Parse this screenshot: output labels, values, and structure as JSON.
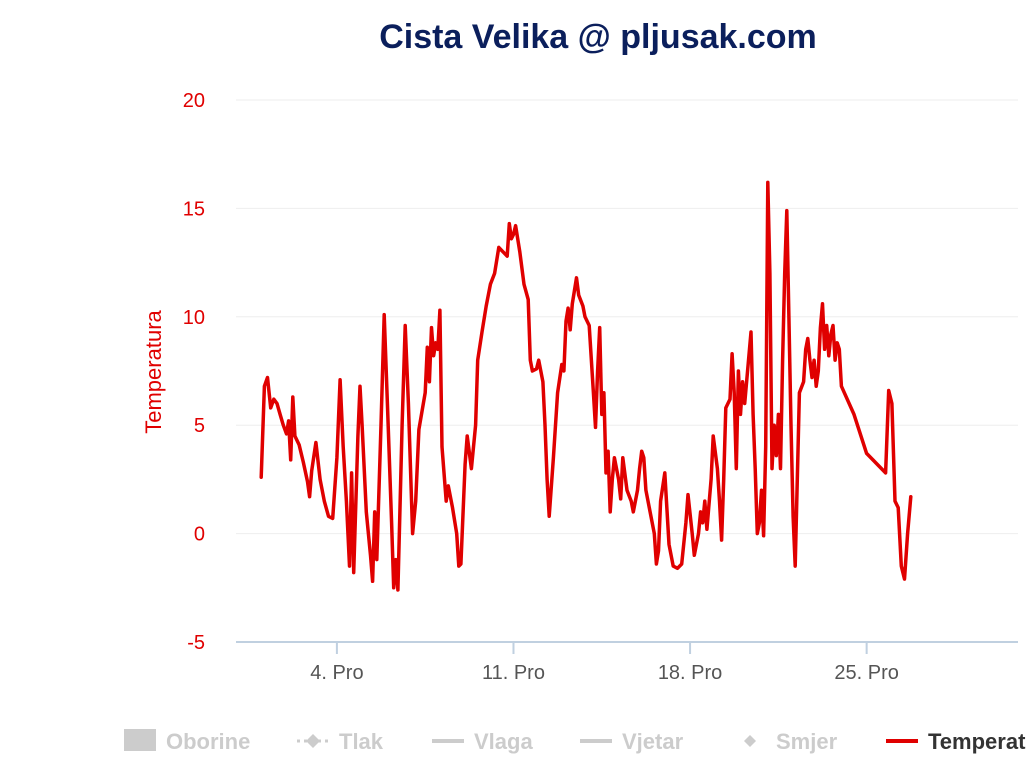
{
  "chart_data": {
    "type": "line",
    "title": "Cista Velika @ pljusak.com",
    "ylabel": "Temperatura",
    "ylim": [
      -5,
      20
    ],
    "yticks": [
      -5,
      0,
      5,
      10,
      15,
      20
    ],
    "xlim": [
      "2020-11-30",
      "2020-12-31"
    ],
    "xticks": [
      {
        "date": "2020-12-04",
        "label": "4. Pro"
      },
      {
        "date": "2020-12-11",
        "label": "11. Pro"
      },
      {
        "date": "2020-12-18",
        "label": "18. Pro"
      },
      {
        "date": "2020-12-25",
        "label": "25. Pro"
      }
    ],
    "grid": true,
    "legend_position": "bottom",
    "legend": [
      {
        "name": "Oborine",
        "symbol": "box",
        "active": false
      },
      {
        "name": "Tlak",
        "symbol": "dash-diamond",
        "active": false
      },
      {
        "name": "Vlaga",
        "symbol": "line",
        "active": false
      },
      {
        "name": "Vjetar",
        "symbol": "line",
        "active": false
      },
      {
        "name": "Smjer",
        "symbol": "diamond",
        "active": false
      },
      {
        "name": "Temperat",
        "symbol": "line",
        "active": true
      }
    ],
    "series": [
      {
        "name": "Temperat",
        "color": "#e00000",
        "points": [
          [
            "2020-12-01 00:00",
            2.6
          ],
          [
            "2020-12-01 03:00",
            6.8
          ],
          [
            "2020-12-01 06:00",
            7.2
          ],
          [
            "2020-12-01 09:00",
            5.8
          ],
          [
            "2020-12-01 12:00",
            6.2
          ],
          [
            "2020-12-01 15:00",
            6.0
          ],
          [
            "2020-12-01 18:00",
            5.5
          ],
          [
            "2020-12-01 21:00",
            5.0
          ],
          [
            "2020-12-02 00:00",
            4.6
          ],
          [
            "2020-12-02 02:00",
            5.2
          ],
          [
            "2020-12-02 04:00",
            3.4
          ],
          [
            "2020-12-02 06:00",
            6.3
          ],
          [
            "2020-12-02 08:00",
            4.5
          ],
          [
            "2020-12-02 12:00",
            4.1
          ],
          [
            "2020-12-02 16:00",
            3.3
          ],
          [
            "2020-12-02 20:00",
            2.4
          ],
          [
            "2020-12-02 22:00",
            1.7
          ],
          [
            "2020-12-03 00:00",
            2.9
          ],
          [
            "2020-12-03 04:00",
            4.2
          ],
          [
            "2020-12-03 08:00",
            2.5
          ],
          [
            "2020-12-03 12:00",
            1.5
          ],
          [
            "2020-12-03 16:00",
            0.8
          ],
          [
            "2020-12-03 20:00",
            0.7
          ],
          [
            "2020-12-04 00:00",
            3.5
          ],
          [
            "2020-12-04 03:00",
            7.1
          ],
          [
            "2020-12-04 06:00",
            4.0
          ],
          [
            "2020-12-04 09:00",
            1.5
          ],
          [
            "2020-12-04 12:00",
            -1.5
          ],
          [
            "2020-12-04 14:00",
            2.8
          ],
          [
            "2020-12-04 16:00",
            -1.8
          ],
          [
            "2020-12-04 20:00",
            4.5
          ],
          [
            "2020-12-04 22:00",
            6.8
          ],
          [
            "2020-12-05 00:00",
            5.0
          ],
          [
            "2020-12-05 04:00",
            1.0
          ],
          [
            "2020-12-05 08:00",
            -1.0
          ],
          [
            "2020-12-05 10:00",
            -2.2
          ],
          [
            "2020-12-05 12:00",
            1.0
          ],
          [
            "2020-12-05 14:00",
            -1.2
          ],
          [
            "2020-12-05 18:00",
            5.0
          ],
          [
            "2020-12-05 21:00",
            10.1
          ],
          [
            "2020-12-06 00:00",
            6.0
          ],
          [
            "2020-12-06 04:00",
            0.5
          ],
          [
            "2020-12-06 06:00",
            -2.5
          ],
          [
            "2020-12-06 08:00",
            -1.2
          ],
          [
            "2020-12-06 10:00",
            -2.6
          ],
          [
            "2020-12-06 14:00",
            5.0
          ],
          [
            "2020-12-06 17:00",
            9.6
          ],
          [
            "2020-12-06 20:00",
            6.0
          ],
          [
            "2020-12-07 00:00",
            0.0
          ],
          [
            "2020-12-07 03:00",
            1.5
          ],
          [
            "2020-12-07 06:00",
            4.8
          ],
          [
            "2020-12-07 12:00",
            6.5
          ],
          [
            "2020-12-07 14:00",
            8.6
          ],
          [
            "2020-12-07 16:00",
            7.0
          ],
          [
            "2020-12-07 18:00",
            9.5
          ],
          [
            "2020-12-07 20:00",
            8.2
          ],
          [
            "2020-12-07 22:00",
            8.8
          ],
          [
            "2020-12-08 00:00",
            8.5
          ],
          [
            "2020-12-08 02:00",
            10.3
          ],
          [
            "2020-12-08 04:00",
            4.0
          ],
          [
            "2020-12-08 08:00",
            1.5
          ],
          [
            "2020-12-08 10:00",
            2.2
          ],
          [
            "2020-12-08 14:00",
            1.2
          ],
          [
            "2020-12-08 18:00",
            0.0
          ],
          [
            "2020-12-08 20:00",
            -1.5
          ],
          [
            "2020-12-08 22:00",
            -1.4
          ],
          [
            "2020-12-09 02:00",
            3.2
          ],
          [
            "2020-12-09 04:00",
            4.5
          ],
          [
            "2020-12-09 08:00",
            3.0
          ],
          [
            "2020-12-09 12:00",
            5.0
          ],
          [
            "2020-12-09 14:00",
            8.0
          ],
          [
            "2020-12-09 18:00",
            9.3
          ],
          [
            "2020-12-09 22:00",
            10.5
          ],
          [
            "2020-12-10 02:00",
            11.5
          ],
          [
            "2020-12-10 06:00",
            12.0
          ],
          [
            "2020-12-10 10:00",
            13.2
          ],
          [
            "2020-12-10 14:00",
            13.0
          ],
          [
            "2020-12-10 18:00",
            12.8
          ],
          [
            "2020-12-10 20:00",
            14.3
          ],
          [
            "2020-12-10 22:00",
            13.6
          ],
          [
            "2020-12-11 00:00",
            13.8
          ],
          [
            "2020-12-11 02:00",
            14.2
          ],
          [
            "2020-12-11 06:00",
            13.0
          ],
          [
            "2020-12-11 10:00",
            11.5
          ],
          [
            "2020-12-11 14:00",
            10.8
          ],
          [
            "2020-12-11 16:00",
            8.0
          ],
          [
            "2020-12-11 18:00",
            7.5
          ],
          [
            "2020-12-11 22:00",
            7.6
          ],
          [
            "2020-12-12 00:00",
            8.0
          ],
          [
            "2020-12-12 04:00",
            7.0
          ],
          [
            "2020-12-12 06:00",
            5.0
          ],
          [
            "2020-12-12 08:00",
            2.5
          ],
          [
            "2020-12-12 10:00",
            0.8
          ],
          [
            "2020-12-12 14:00",
            3.5
          ],
          [
            "2020-12-12 18:00",
            6.5
          ],
          [
            "2020-12-12 22:00",
            7.8
          ],
          [
            "2020-12-13 00:00",
            7.5
          ],
          [
            "2020-12-13 02:00",
            9.8
          ],
          [
            "2020-12-13 04:00",
            10.4
          ],
          [
            "2020-12-13 06:00",
            9.4
          ],
          [
            "2020-12-13 08:00",
            10.6
          ],
          [
            "2020-12-13 10:00",
            11.2
          ],
          [
            "2020-12-13 12:00",
            11.8
          ],
          [
            "2020-12-13 14:00",
            11.0
          ],
          [
            "2020-12-13 18:00",
            10.5
          ],
          [
            "2020-12-13 20:00",
            10.0
          ],
          [
            "2020-12-14 00:00",
            9.6
          ],
          [
            "2020-12-14 04:00",
            6.5
          ],
          [
            "2020-12-14 06:00",
            4.9
          ],
          [
            "2020-12-14 08:00",
            7.5
          ],
          [
            "2020-12-14 10:00",
            9.5
          ],
          [
            "2020-12-14 12:00",
            5.5
          ],
          [
            "2020-12-14 14:00",
            6.5
          ],
          [
            "2020-12-14 16:00",
            2.8
          ],
          [
            "2020-12-14 18:00",
            3.8
          ],
          [
            "2020-12-14 20:00",
            1.0
          ],
          [
            "2020-12-14 22:00",
            2.5
          ],
          [
            "2020-12-15 00:00",
            3.5
          ],
          [
            "2020-12-15 04:00",
            2.5
          ],
          [
            "2020-12-15 06:00",
            1.6
          ],
          [
            "2020-12-15 08:00",
            3.5
          ],
          [
            "2020-12-15 12:00",
            2.0
          ],
          [
            "2020-12-15 16:00",
            1.5
          ],
          [
            "2020-12-15 18:00",
            1.0
          ],
          [
            "2020-12-15 22:00",
            2.0
          ],
          [
            "2020-12-16 00:00",
            3.0
          ],
          [
            "2020-12-16 02:00",
            3.8
          ],
          [
            "2020-12-16 04:00",
            3.5
          ],
          [
            "2020-12-16 06:00",
            2.0
          ],
          [
            "2020-12-16 10:00",
            1.0
          ],
          [
            "2020-12-16 14:00",
            0.0
          ],
          [
            "2020-12-16 16:00",
            -1.4
          ],
          [
            "2020-12-16 18:00",
            -0.8
          ],
          [
            "2020-12-16 20:00",
            1.5
          ],
          [
            "2020-12-17 00:00",
            2.8
          ],
          [
            "2020-12-17 04:00",
            -0.5
          ],
          [
            "2020-12-17 08:00",
            -1.5
          ],
          [
            "2020-12-17 12:00",
            -1.6
          ],
          [
            "2020-12-17 16:00",
            -1.4
          ],
          [
            "2020-12-17 20:00",
            0.5
          ],
          [
            "2020-12-17 22:00",
            1.8
          ],
          [
            "2020-12-18 02:00",
            0.0
          ],
          [
            "2020-12-18 04:00",
            -1.0
          ],
          [
            "2020-12-18 08:00",
            0.0
          ],
          [
            "2020-12-18 10:00",
            1.0
          ],
          [
            "2020-12-18 12:00",
            0.5
          ],
          [
            "2020-12-18 14:00",
            1.5
          ],
          [
            "2020-12-18 16:00",
            0.2
          ],
          [
            "2020-12-18 20:00",
            2.5
          ],
          [
            "2020-12-18 22:00",
            4.5
          ],
          [
            "2020-12-19 02:00",
            3.0
          ],
          [
            "2020-12-19 04:00",
            1.5
          ],
          [
            "2020-12-19 06:00",
            -0.3
          ],
          [
            "2020-12-19 08:00",
            2.5
          ],
          [
            "2020-12-19 10:00",
            5.8
          ],
          [
            "2020-12-19 14:00",
            6.2
          ],
          [
            "2020-12-19 16:00",
            8.3
          ],
          [
            "2020-12-19 18:00",
            6.5
          ],
          [
            "2020-12-19 20:00",
            3.0
          ],
          [
            "2020-12-19 22:00",
            7.5
          ],
          [
            "2020-12-20 00:00",
            5.5
          ],
          [
            "2020-12-20 02:00",
            7.0
          ],
          [
            "2020-12-20 04:00",
            6.0
          ],
          [
            "2020-12-20 08:00",
            8.2
          ],
          [
            "2020-12-20 10:00",
            9.3
          ],
          [
            "2020-12-20 12:00",
            5.5
          ],
          [
            "2020-12-20 14:00",
            3.0
          ],
          [
            "2020-12-20 16:00",
            0.0
          ],
          [
            "2020-12-20 18:00",
            0.5
          ],
          [
            "2020-12-20 20:00",
            2.0
          ],
          [
            "2020-12-20 22:00",
            -0.1
          ],
          [
            "2020-12-21 00:00",
            4.0
          ],
          [
            "2020-12-21 02:00",
            16.2
          ],
          [
            "2020-12-21 04:00",
            12.0
          ],
          [
            "2020-12-21 06:00",
            3.0
          ],
          [
            "2020-12-21 08:00",
            5.0
          ],
          [
            "2020-12-21 10:00",
            3.6
          ],
          [
            "2020-12-21 12:00",
            5.5
          ],
          [
            "2020-12-21 14:00",
            3.0
          ],
          [
            "2020-12-21 16:00",
            8.0
          ],
          [
            "2020-12-21 18:00",
            12.0
          ],
          [
            "2020-12-21 20:00",
            14.9
          ],
          [
            "2020-12-21 22:00",
            10.0
          ],
          [
            "2020-12-22 00:00",
            5.0
          ],
          [
            "2020-12-22 02:00",
            0.8
          ],
          [
            "2020-12-22 04:00",
            -1.5
          ],
          [
            "2020-12-22 06:00",
            2.5
          ],
          [
            "2020-12-22 08:00",
            6.5
          ],
          [
            "2020-12-22 12:00",
            7.0
          ],
          [
            "2020-12-22 14:00",
            8.5
          ],
          [
            "2020-12-22 16:00",
            9.0
          ],
          [
            "2020-12-22 18:00",
            8.0
          ],
          [
            "2020-12-22 20:00",
            7.2
          ],
          [
            "2020-12-22 22:00",
            8.0
          ],
          [
            "2020-12-23 00:00",
            6.8
          ],
          [
            "2020-12-23 02:00",
            7.5
          ],
          [
            "2020-12-23 04:00",
            9.5
          ],
          [
            "2020-12-23 06:00",
            10.6
          ],
          [
            "2020-12-23 08:00",
            8.5
          ],
          [
            "2020-12-23 10:00",
            9.6
          ],
          [
            "2020-12-23 12:00",
            8.2
          ],
          [
            "2020-12-23 14:00",
            9.2
          ],
          [
            "2020-12-23 16:00",
            9.6
          ],
          [
            "2020-12-23 18:00",
            8.0
          ],
          [
            "2020-12-23 20:00",
            8.8
          ],
          [
            "2020-12-23 22:00",
            8.5
          ],
          [
            "2020-12-24 00:00",
            6.8
          ],
          [
            "2020-12-24 12:00",
            5.5
          ],
          [
            "2020-12-25 00:00",
            3.7
          ],
          [
            "2020-12-25 18:00",
            2.8
          ],
          [
            "2020-12-25 21:00",
            6.6
          ],
          [
            "2020-12-26 00:00",
            6.0
          ],
          [
            "2020-12-26 03:00",
            1.5
          ],
          [
            "2020-12-26 06:00",
            1.2
          ],
          [
            "2020-12-26 09:00",
            -1.5
          ],
          [
            "2020-12-26 12:00",
            -2.1
          ],
          [
            "2020-12-26 15:00",
            0.0
          ],
          [
            "2020-12-26 18:00",
            1.7
          ]
        ]
      }
    ]
  }
}
